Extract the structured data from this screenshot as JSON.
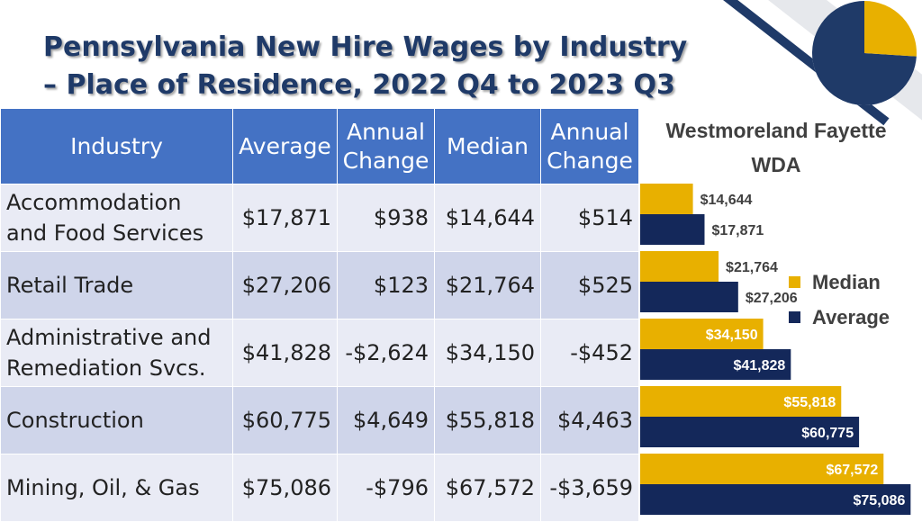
{
  "title": {
    "line1": "Pennsylvania New Hire Wages by Industry",
    "line2": "– Place of Residence, 2022 Q4 to 2023 Q3"
  },
  "table": {
    "headers": {
      "industry": "Industry",
      "average": "Average",
      "avg_change_1": "Annual",
      "avg_change_2": "Change",
      "median": "Median",
      "med_change_1": "Annual",
      "med_change_2": "Change"
    },
    "rows": [
      {
        "industry_1": "Accommodation",
        "industry_2": "and Food Services",
        "average": "$17,871",
        "avg_change": "$938",
        "median": "$14,644",
        "med_change": "$514"
      },
      {
        "industry_1": "Retail Trade",
        "industry_2": "",
        "average": "$27,206",
        "avg_change": "$123",
        "median": "$21,764",
        "med_change": "$525"
      },
      {
        "industry_1": "Administrative and",
        "industry_2": "Remediation Svcs.",
        "average": "$41,828",
        "avg_change": "-$2,624",
        "median": "$34,150",
        "med_change": "-$452"
      },
      {
        "industry_1": "Construction",
        "industry_2": "",
        "average": "$60,775",
        "avg_change": "$4,649",
        "median": "$55,818",
        "med_change": "$4,463"
      },
      {
        "industry_1": "Mining, Oil, & Gas",
        "industry_2": "",
        "average": "$75,086",
        "avg_change": "-$796",
        "median": "$67,572",
        "med_change": "-$3,659"
      }
    ]
  },
  "chart_data": {
    "type": "bar",
    "orientation": "horizontal",
    "title_line1": "Westmoreland Fayette",
    "title_line2": "WDA",
    "categories": [
      "Accommodation and Food Services",
      "Retail Trade",
      "Administrative and Remediation Svcs.",
      "Construction",
      "Mining, Oil, & Gas"
    ],
    "series": [
      {
        "name": "Median",
        "color": "#e8b000",
        "values": [
          14644,
          21764,
          34150,
          55818,
          67572
        ],
        "labels": [
          "$14,644",
          "$21,764",
          "$34,150",
          "$55,818",
          "$67,572"
        ]
      },
      {
        "name": "Average",
        "color": "#14285a",
        "values": [
          17871,
          27206,
          41828,
          60775,
          75086
        ],
        "labels": [
          "$17,871",
          "$27,206",
          "$41,828",
          "$60,775",
          "$75,086"
        ]
      }
    ],
    "xlim": [
      0,
      76500
    ],
    "legend": "right",
    "grid": false
  },
  "pie": {
    "slices": [
      {
        "color": "#e8b000",
        "fraction": 0.26
      },
      {
        "color": "#1f3a68",
        "fraction": 0.74
      }
    ]
  }
}
